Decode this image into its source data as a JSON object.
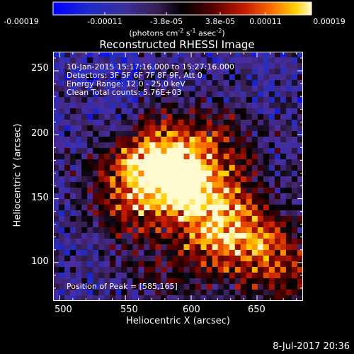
{
  "chart_data": {
    "type": "heatmap",
    "title": "Reconstructed RHESSI Image",
    "xlabel": "Heliocentric X (arcsec)",
    "ylabel": "Heliocentric Y (arcsec)",
    "xlim": [
      495,
      685
    ],
    "ylim": [
      70,
      265
    ],
    "xticks": [
      "500",
      "550",
      "600",
      "650"
    ],
    "yticks": [
      "100",
      "150",
      "200",
      "250"
    ],
    "colorbar": {
      "ticks": [
        "-0.00019",
        "-0.00011",
        "-3.8e-05",
        "3.8e-05",
        "0.00011",
        "0.00019"
      ],
      "unit": "(photons cm",
      "unit_parts": [
        "(photons cm",
        "-2",
        " s",
        "-1",
        " asec",
        "-2",
        ")"
      ],
      "range": [
        -0.00019,
        0.00019
      ]
    },
    "annotations": [
      "10-Jan-2015 15:17:16.000 to 15:27:16.000",
      "Detectors: 3F 5F 6F 7F 8F 9F, Att 0",
      "Energy Range: 12.0 - 25.0 keV",
      "Clean      Total counts: 5.76E+03"
    ],
    "peak_label": "Position of Peak = [585,165]",
    "peak": [
      585,
      165
    ],
    "emission_sources": [
      {
        "x": 585,
        "y": 165,
        "strength": 1.0
      },
      {
        "x": 565,
        "y": 175,
        "strength": 0.75
      },
      {
        "x": 610,
        "y": 150,
        "strength": 0.6
      },
      {
        "x": 640,
        "y": 125,
        "strength": 0.55
      },
      {
        "x": 665,
        "y": 100,
        "strength": 0.5
      },
      {
        "x": 620,
        "y": 110,
        "strength": 0.45
      },
      {
        "x": 545,
        "y": 140,
        "strength": 0.45
      },
      {
        "x": 600,
        "y": 200,
        "strength": 0.4
      },
      {
        "x": 630,
        "y": 185,
        "strength": 0.35
      },
      {
        "x": 580,
        "y": 95,
        "strength": 0.35
      }
    ]
  },
  "footer": {
    "date": "8-Jul-2017 20:36"
  },
  "colors": {
    "background": "#000000",
    "axis": "#ffffff",
    "text": "#ffffff"
  }
}
